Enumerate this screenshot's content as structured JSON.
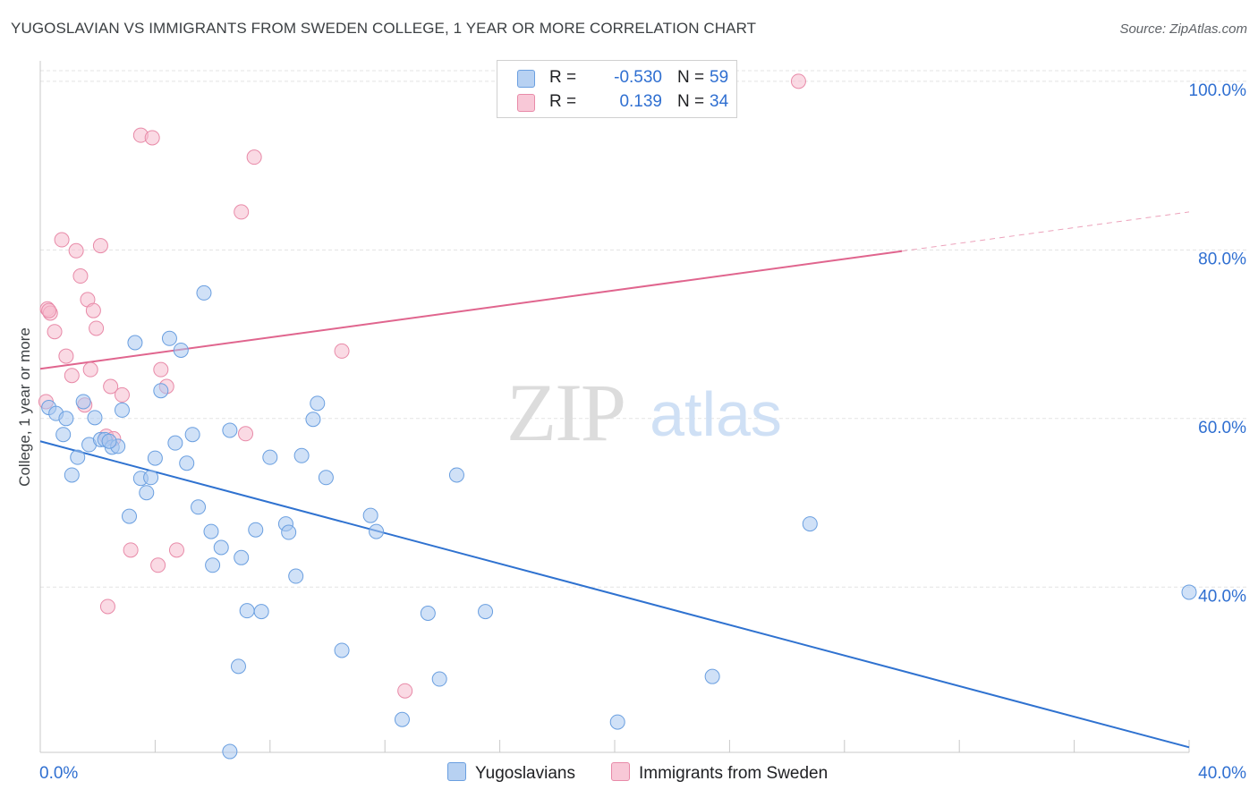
{
  "title": "YUGOSLAVIAN VS IMMIGRANTS FROM SWEDEN COLLEGE, 1 YEAR OR MORE CORRELATION CHART",
  "source": "Source: ZipAtlas.com",
  "watermark": {
    "zip": "ZIP",
    "atlas": "atlas"
  },
  "colors": {
    "blue_fill": "#a9c8f0",
    "blue_stroke": "#6a9fe0",
    "blue_line": "#2f72d0",
    "pink_fill": "#f5bccd",
    "pink_stroke": "#e88aa8",
    "pink_line": "#e0658e",
    "value_text": "#2f6fd1",
    "grid": "#e3e3e3"
  },
  "legend": {
    "rows": [
      {
        "r_label": "R =",
        "r_value": "-0.530",
        "n_label": "N =",
        "n_value": "59"
      },
      {
        "r_label": "R =",
        "r_value": "0.139",
        "n_label": "N =",
        "n_value": "34"
      }
    ]
  },
  "bottom_legend": {
    "series1": "Yugoslavians",
    "series2": "Immigrants from Sweden"
  },
  "chart_data": {
    "type": "scatter",
    "title": "YUGOSLAVIAN VS IMMIGRANTS FROM SWEDEN COLLEGE, 1 YEAR OR MORE CORRELATION CHART",
    "xlabel": "",
    "ylabel": "College, 1 year or more",
    "x_tick_labels": [
      "0.0%",
      "40.0%"
    ],
    "y_tick_labels": [
      "100.0%",
      "80.0%",
      "60.0%",
      "40.0%"
    ],
    "xlim": [
      0,
      40
    ],
    "ylim": [
      20.4,
      102
    ],
    "grid": true,
    "legend_position": "top-center",
    "series": [
      {
        "name": "Yugoslavians",
        "color": "#a9c8f0",
        "r": -0.53,
        "n": 59,
        "trend": {
          "x": [
            0,
            40
          ],
          "y": [
            57.3,
            21.0
          ]
        },
        "points": [
          [
            0.3,
            61.3
          ],
          [
            0.55,
            60.6
          ],
          [
            0.8,
            58.1
          ],
          [
            0.9,
            60.0
          ],
          [
            1.1,
            53.3
          ],
          [
            1.3,
            55.4
          ],
          [
            1.5,
            62.0
          ],
          [
            1.7,
            56.9
          ],
          [
            1.9,
            60.1
          ],
          [
            2.1,
            57.5
          ],
          [
            2.25,
            57.5
          ],
          [
            2.5,
            56.6
          ],
          [
            2.7,
            56.7
          ],
          [
            2.85,
            61.0
          ],
          [
            3.1,
            48.4
          ],
          [
            3.3,
            69.0
          ],
          [
            3.5,
            52.9
          ],
          [
            3.7,
            51.2
          ],
          [
            3.85,
            53.0
          ],
          [
            4.0,
            55.3
          ],
          [
            4.2,
            63.3
          ],
          [
            4.5,
            69.5
          ],
          [
            4.7,
            57.1
          ],
          [
            4.9,
            68.1
          ],
          [
            5.1,
            54.7
          ],
          [
            5.3,
            58.1
          ],
          [
            5.5,
            49.5
          ],
          [
            5.7,
            74.9
          ],
          [
            5.95,
            46.6
          ],
          [
            6.0,
            42.6
          ],
          [
            6.3,
            44.7
          ],
          [
            6.6,
            58.6
          ],
          [
            6.9,
            30.6
          ],
          [
            7.0,
            43.5
          ],
          [
            7.2,
            37.2
          ],
          [
            7.5,
            46.8
          ],
          [
            7.7,
            37.1
          ],
          [
            8.0,
            55.4
          ],
          [
            8.55,
            47.5
          ],
          [
            8.65,
            46.5
          ],
          [
            8.9,
            41.3
          ],
          [
            9.1,
            55.6
          ],
          [
            9.5,
            59.9
          ],
          [
            9.65,
            61.8
          ],
          [
            9.95,
            53.0
          ],
          [
            10.5,
            32.5
          ],
          [
            11.5,
            48.5
          ],
          [
            11.7,
            46.6
          ],
          [
            12.6,
            24.3
          ],
          [
            13.5,
            36.9
          ],
          [
            13.9,
            29.1
          ],
          [
            14.5,
            53.3
          ],
          [
            15.5,
            37.1
          ],
          [
            20.1,
            24.0
          ],
          [
            23.4,
            29.4
          ],
          [
            26.8,
            47.5
          ],
          [
            40.0,
            39.4
          ],
          [
            6.6,
            20.5
          ],
          [
            2.4,
            57.3
          ]
        ]
      },
      {
        "name": "Immigrants from Sweden",
        "color": "#f5bccd",
        "r": 0.139,
        "n": 34,
        "trend": {
          "x": [
            0,
            40
          ],
          "y": [
            65.9,
            84.5
          ],
          "solid_until_x": 30
        },
        "points": [
          [
            0.2,
            62.0
          ],
          [
            0.25,
            73.0
          ],
          [
            0.35,
            72.5
          ],
          [
            0.5,
            70.3
          ],
          [
            0.75,
            81.2
          ],
          [
            0.9,
            67.4
          ],
          [
            1.1,
            65.1
          ],
          [
            1.25,
            79.9
          ],
          [
            1.4,
            76.9
          ],
          [
            1.55,
            61.6
          ],
          [
            1.65,
            74.1
          ],
          [
            1.75,
            65.8
          ],
          [
            1.85,
            72.8
          ],
          [
            1.95,
            70.7
          ],
          [
            2.1,
            80.5
          ],
          [
            2.3,
            57.9
          ],
          [
            2.35,
            37.7
          ],
          [
            2.45,
            63.8
          ],
          [
            2.55,
            57.6
          ],
          [
            2.85,
            62.8
          ],
          [
            3.15,
            44.4
          ],
          [
            3.5,
            93.6
          ],
          [
            3.9,
            93.3
          ],
          [
            4.1,
            42.6
          ],
          [
            4.2,
            65.8
          ],
          [
            4.4,
            63.8
          ],
          [
            4.75,
            44.4
          ],
          [
            7.0,
            84.5
          ],
          [
            7.15,
            58.2
          ],
          [
            7.45,
            91.0
          ],
          [
            10.5,
            68.0
          ],
          [
            12.7,
            27.7
          ],
          [
            26.4,
            100.0
          ],
          [
            0.3,
            72.8
          ]
        ]
      }
    ]
  }
}
